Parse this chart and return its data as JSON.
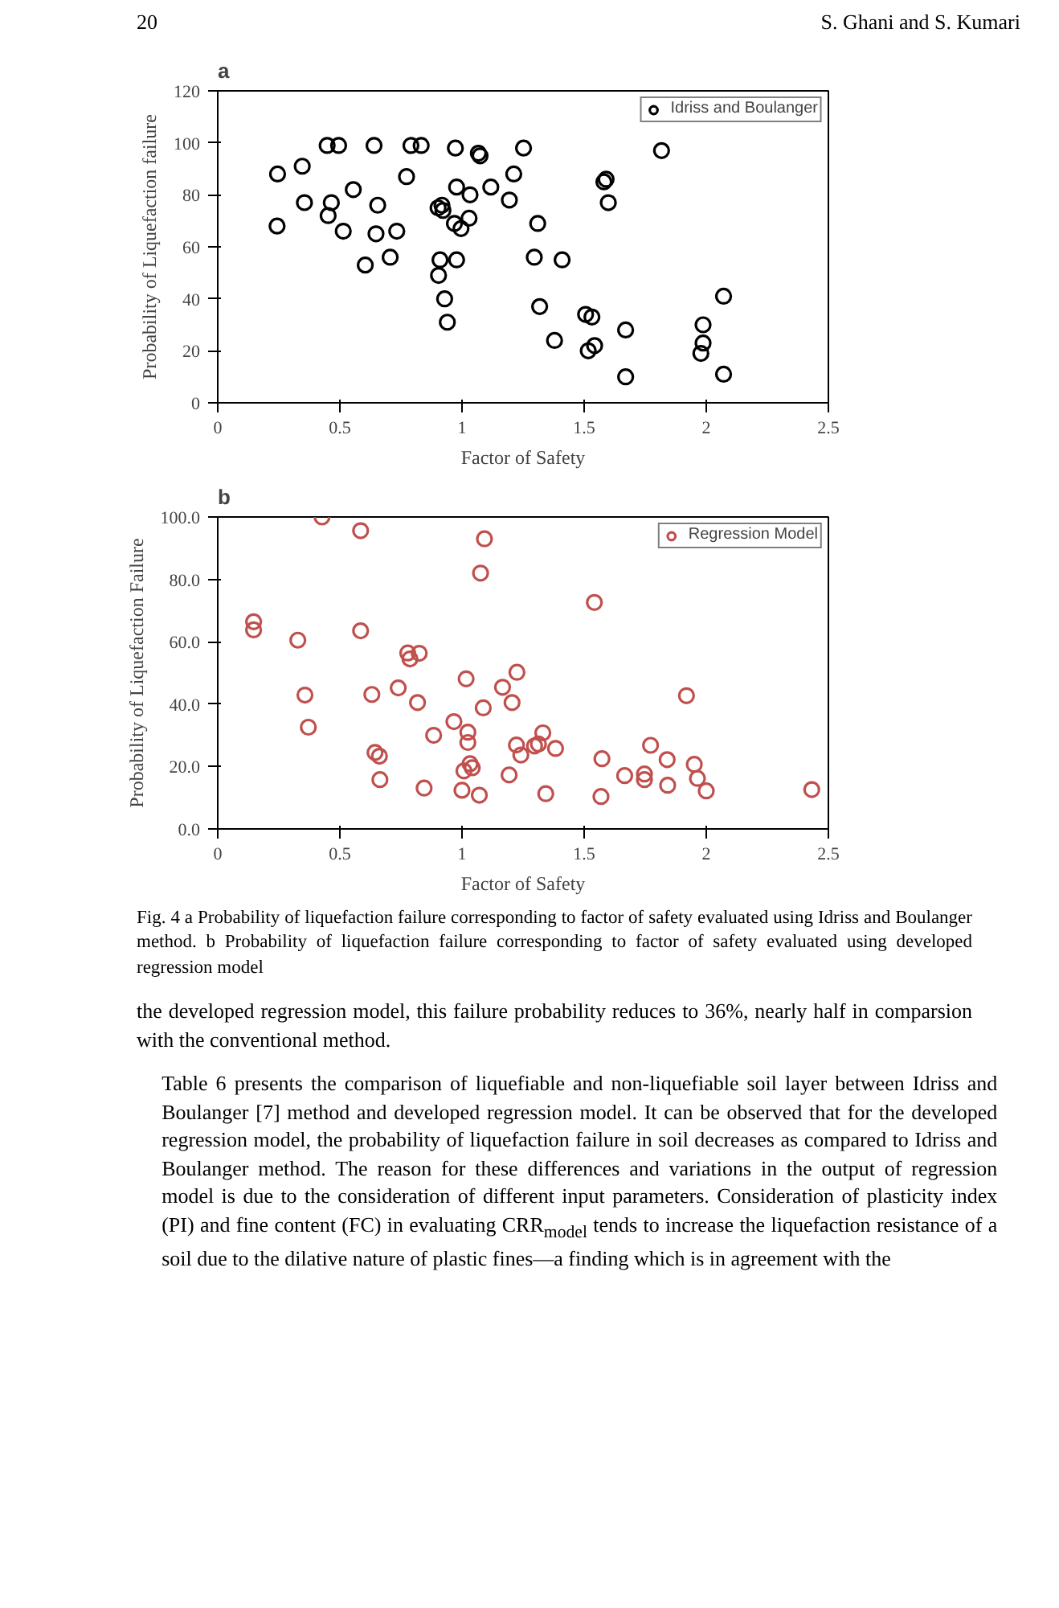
{
  "chart_data": [
    {
      "type": "scatter",
      "title": "a",
      "xlabel": "Factor of Safety",
      "ylabel": "Probability of Liquefaction failure",
      "annotations": [
        "20",
        "S. Ghani and S. Kumari"
      ],
      "xlim": [
        0,
        2.5
      ],
      "xticks": [
        0,
        0.5,
        1,
        1.5,
        2,
        2.5
      ],
      "ylim": [
        0,
        120
      ],
      "yticks": [
        0,
        20,
        40,
        60,
        80,
        100,
        120
      ],
      "marker": "circle",
      "legend": "top right",
      "grid": false,
      "series": [
        {
          "name": "Idriss and Boulanger",
          "color": "#000000",
          "x": [
            0.245,
            0.346,
            0.243,
            0.355,
            0.448,
            0.495,
            0.465,
            0.452,
            0.555,
            0.514,
            0.64,
            0.655,
            0.648,
            0.604,
            0.733,
            0.706,
            0.773,
            0.791,
            0.833,
            0.973,
            0.902,
            0.918,
            0.922,
            0.978,
            1.033,
            0.969,
            0.996,
            1.029,
            0.91,
            0.978,
            0.904,
            0.929,
            0.94,
            1.067,
            1.074,
            1.118,
            1.252,
            1.212,
            1.194,
            1.31,
            1.296,
            1.41,
            1.318,
            1.379,
            1.506,
            1.532,
            1.543,
            1.517,
            1.581,
            1.59,
            1.599,
            1.67,
            1.67,
            1.817,
            1.987,
            1.987,
            1.978,
            2.071,
            2.071
          ],
          "values": [
            88,
            91,
            68,
            77,
            99,
            99,
            77,
            72,
            82,
            66,
            99,
            76,
            65,
            53,
            66,
            56,
            87,
            99,
            99,
            98,
            75,
            76,
            74,
            83,
            80,
            69,
            67,
            71,
            55,
            55,
            49,
            40,
            31,
            96,
            95,
            83,
            98,
            88,
            78,
            69,
            56,
            55,
            37,
            24,
            34,
            33,
            22,
            20,
            85,
            86,
            77,
            28,
            10,
            97,
            30,
            23,
            19,
            41,
            11
          ]
        }
      ]
    },
    {
      "type": "scatter",
      "title": "b",
      "xlabel": "Factor of Safety",
      "ylabel": "Probability of Liquefaction Failure",
      "annotations": [
        "Fig. 4  a Probability of liquefaction failure corresponding to factor of safety evaluated using Idriss and Boulanger method. b Probability of liquefaction failure corresponding to factor of safety evaluated using developed regression model",
        "the developed regression model, this failure probability reduces to 36%, nearly half in comparsion with the conventional method.",
        "Table 6 presents the comparison of liquefiable and non-liquefiable soil layer between Idriss and Boulanger [7] method and developed regression model. It can be observed that for the developed regression model, the probability of liquefaction failure in soil decreases as compared to Idriss and Boulanger method. The reason for these differences and variations in the output of regression model is due to the consideration of different input parameters. Consideration of plasticity index (PI) and fine content (FC) in evaluating CRR$_{model}$ tends to increase the liquefaction resistance of a soil due to the dilative nature of plastic fines—a finding which is in agreement with the"
      ],
      "xlim": [
        0,
        2.5
      ],
      "xticks": [
        0,
        0.5,
        1,
        1.5,
        2,
        2.5
      ],
      "ylim": [
        0,
        100
      ],
      "yticks": [
        {
          "value": 0,
          "label": "0.0"
        },
        {
          "value": 20,
          "label": "20.0"
        },
        {
          "value": 40,
          "label": "40.0"
        },
        {
          "value": 60,
          "label": "60.0"
        },
        {
          "value": 80,
          "label": "80.0"
        },
        {
          "value": 100,
          "label": "100.0"
        }
      ],
      "marker": "circle",
      "legend": "top right",
      "grid": false,
      "series": [
        {
          "name": "Regression Model",
          "color": "#c0504d",
          "x": [
            0.427,
            0.585,
            1.092,
            1.076,
            1.542,
            0.147,
            0.147,
            0.585,
            0.328,
            0.778,
            0.787,
            0.825,
            1.017,
            1.225,
            0.357,
            0.631,
            0.739,
            1.166,
            0.818,
            1.205,
            1.087,
            1.919,
            0.371,
            0.967,
            1.017,
            1.024,
            1.024,
            0.884,
            1.331,
            1.223,
            1.241,
            1.297,
            1.313,
            1.383,
            0.644,
            0.662,
            0.664,
            1.033,
            1.042,
            1.008,
            0.845,
            1.0,
            1.071,
            1.193,
            1.343,
            1.573,
            1.569,
            1.666,
            1.747,
            1.747,
            1.772,
            1.84,
            1.842,
            1.951,
            1.964,
            2.0,
            2.432
          ],
          "values": [
            100,
            95.6,
            93,
            82,
            72.6,
            66.4,
            63.8,
            63.5,
            60.5,
            56.4,
            54.5,
            56.3,
            48.1,
            50.2,
            42.9,
            43.1,
            45.2,
            45.4,
            40.5,
            40.5,
            38.8,
            42.7,
            32.6,
            34.4,
            null,
            31,
            27.7,
            30,
            30.8,
            26.9,
            23.7,
            26.6,
            27.2,
            25.8,
            24.5,
            23.3,
            15.8,
            20.9,
            19.6,
            18.6,
            13.1,
            12.4,
            10.8,
            17.3,
            11.3,
            22.5,
            10.4,
            17.1,
            17.6,
            15.8,
            26.8,
            22.2,
            14,
            20.7,
            16.2,
            12.2,
            12.6
          ]
        }
      ]
    }
  ]
}
